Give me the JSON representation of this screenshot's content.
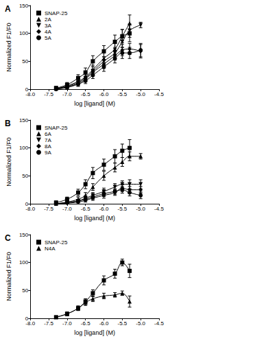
{
  "chart_data": [
    {
      "type": "line",
      "title": "A",
      "x_label": "log [ligand] (M)",
      "y_label": "Normalized F1/F0",
      "x": [
        -7.3,
        -7.0,
        -6.7,
        -6.5,
        -6.3,
        -6.0,
        -5.7,
        -5.5,
        -5.3,
        -5.0
      ],
      "xlim": [
        -8,
        -4.5
      ],
      "xticks": [
        {
          "value": -8,
          "label": "-8.0"
        },
        -7.5,
        {
          "value": -7,
          "label": "-7.0"
        },
        -6.5,
        {
          "value": -6,
          "label": "-6.0"
        },
        -5.5,
        {
          "value": -5,
          "label": "-5.0"
        },
        -4.5
      ],
      "ylim": [
        0,
        150
      ],
      "yticks": [
        0,
        50,
        100,
        150
      ],
      "grid": false,
      "legend": "top-left",
      "series": [
        {
          "name": "SNAP-25",
          "color": "#000000",
          "marker": "square",
          "line_style": "solid",
          "values": [
            2,
            8,
            20,
            30,
            50,
            68,
            85,
            95,
            100,
            null
          ],
          "errors": [
            3,
            4,
            6,
            8,
            10,
            10,
            12,
            12,
            15,
            null
          ]
        },
        {
          "name": "2A",
          "color": "#000000",
          "marker": "triangle-up",
          "line_style": "solid",
          "values": [
            1,
            6,
            14,
            22,
            35,
            55,
            72,
            95,
            118,
            null
          ],
          "errors": [
            2,
            3,
            5,
            6,
            8,
            10,
            10,
            12,
            15,
            null
          ]
        },
        {
          "name": "3A",
          "color": "#000000",
          "marker": "triangle-down",
          "line_style": "solid",
          "values": [
            1,
            5,
            12,
            20,
            32,
            50,
            65,
            85,
            105,
            115
          ],
          "errors": [
            2,
            3,
            4,
            6,
            8,
            8,
            10,
            10,
            12,
            5
          ]
        },
        {
          "name": "4A",
          "color": "#000000",
          "marker": "diamond",
          "line_style": "solid",
          "values": [
            0,
            4,
            10,
            18,
            30,
            45,
            60,
            70,
            72,
            68
          ],
          "errors": [
            2,
            3,
            4,
            5,
            6,
            8,
            8,
            10,
            10,
            12
          ]
        },
        {
          "name": "5A",
          "color": "#000000",
          "marker": "circle",
          "line_style": "solid",
          "values": [
            0,
            3,
            9,
            15,
            25,
            40,
            55,
            65,
            65,
            70
          ],
          "errors": [
            2,
            2,
            4,
            5,
            6,
            8,
            8,
            10,
            10,
            12
          ]
        }
      ]
    },
    {
      "type": "line",
      "title": "B",
      "x_label": "log [ligand] (M)",
      "y_label": "Normalized F1/F0",
      "x": [
        -7.3,
        -7.0,
        -6.7,
        -6.5,
        -6.3,
        -6.0,
        -5.7,
        -5.5,
        -5.3,
        -5.0
      ],
      "xlim": [
        -8,
        -4.5
      ],
      "xticks": [
        {
          "value": -8,
          "label": "-8.0"
        },
        -7.5,
        {
          "value": -7,
          "label": "-7.0"
        },
        -6.5,
        {
          "value": -6,
          "label": "-6.0"
        },
        -5.5,
        {
          "value": -5,
          "label": "-5.0"
        },
        -4.5
      ],
      "ylim": [
        0,
        150
      ],
      "yticks": [
        0,
        50,
        100,
        150
      ],
      "grid": false,
      "legend": "top-left",
      "series": [
        {
          "name": "SNAP-25",
          "color": "#000000",
          "marker": "square",
          "line_style": "solid",
          "values": [
            2,
            8,
            20,
            35,
            55,
            70,
            85,
            95,
            100,
            null
          ],
          "errors": [
            3,
            4,
            6,
            8,
            10,
            10,
            12,
            12,
            15,
            null
          ]
        },
        {
          "name": "6A",
          "color": "#000000",
          "marker": "triangle-up",
          "line_style": "solid",
          "values": [
            0,
            3,
            8,
            15,
            30,
            50,
            65,
            75,
            85,
            85
          ],
          "errors": [
            2,
            2,
            4,
            5,
            6,
            8,
            8,
            8,
            8,
            5
          ]
        },
        {
          "name": "7A",
          "color": "#000000",
          "marker": "triangle-down",
          "line_style": "solid",
          "values": [
            0,
            2,
            5,
            10,
            15,
            22,
            30,
            35,
            35,
            35
          ],
          "errors": [
            2,
            2,
            3,
            4,
            5,
            6,
            6,
            6,
            8,
            8
          ]
        },
        {
          "name": "8A",
          "color": "#000000",
          "marker": "diamond",
          "line_style": "solid",
          "values": [
            0,
            1,
            3,
            6,
            10,
            15,
            20,
            28,
            25,
            25
          ],
          "errors": [
            2,
            2,
            3,
            3,
            4,
            5,
            5,
            6,
            6,
            6
          ]
        },
        {
          "name": "9A",
          "color": "#000000",
          "marker": "circle",
          "line_style": "solid",
          "values": [
            0,
            2,
            5,
            8,
            12,
            18,
            22,
            25,
            20,
            15
          ],
          "errors": [
            2,
            2,
            3,
            3,
            4,
            5,
            5,
            6,
            6,
            6
          ]
        }
      ]
    },
    {
      "type": "line",
      "title": "C",
      "x_label": "log [ligand] (M)",
      "y_label": "Normalized F1/F0",
      "x": [
        -7.3,
        -7.0,
        -6.7,
        -6.5,
        -6.3,
        -6.0,
        -5.7,
        -5.5,
        -5.3
      ],
      "xlim": [
        -8,
        -4.5
      ],
      "xticks": [
        {
          "value": -8,
          "label": "-8.0"
        },
        -7.5,
        {
          "value": -7,
          "label": "-7.0"
        },
        -6.5,
        {
          "value": -6,
          "label": "-6.0"
        },
        -5.5,
        {
          "value": -5,
          "label": "-5.0"
        },
        -4.5
      ],
      "ylim": [
        0,
        150
      ],
      "yticks": [
        0,
        50,
        100,
        150
      ],
      "grid": false,
      "legend": "top-left",
      "series": [
        {
          "name": "SNAP-25",
          "color": "#000000",
          "marker": "square",
          "line_style": "solid",
          "values": [
            2,
            8,
            18,
            30,
            45,
            68,
            80,
            100,
            85
          ],
          "errors": [
            2,
            3,
            4,
            5,
            6,
            8,
            8,
            6,
            12
          ]
        },
        {
          "name": "N4A",
          "color": "#000000",
          "marker": "triangle-up",
          "line_style": "solid",
          "values": [
            2,
            8,
            18,
            28,
            35,
            40,
            42,
            45,
            30
          ],
          "errors": [
            2,
            3,
            4,
            5,
            5,
            5,
            4,
            4,
            10
          ]
        }
      ]
    }
  ]
}
